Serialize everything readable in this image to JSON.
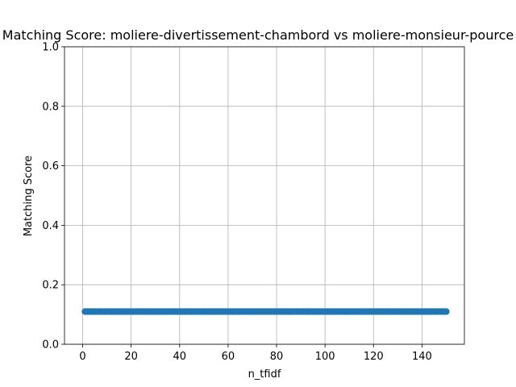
{
  "chart_data": {
    "type": "scatter",
    "title": "Matching Score: moliere-divertissement-chambord vs moliere-monsieur-pource",
    "xlabel": "n_tfidf",
    "ylabel": "Matching Score",
    "xlim": [
      -7.5,
      157.5
    ],
    "ylim": [
      0,
      1
    ],
    "x_ticks": [
      "0",
      "20",
      "40",
      "60",
      "80",
      "100",
      "120",
      "140"
    ],
    "y_ticks": [
      "0.0",
      "0.2",
      "0.4",
      "0.6",
      "0.8",
      "1.0"
    ],
    "grid": true,
    "marker_color": "#1f77b4",
    "series": [
      {
        "x_start": 1,
        "x_end": 150,
        "x_step": 1,
        "y": 0.11
      }
    ]
  }
}
